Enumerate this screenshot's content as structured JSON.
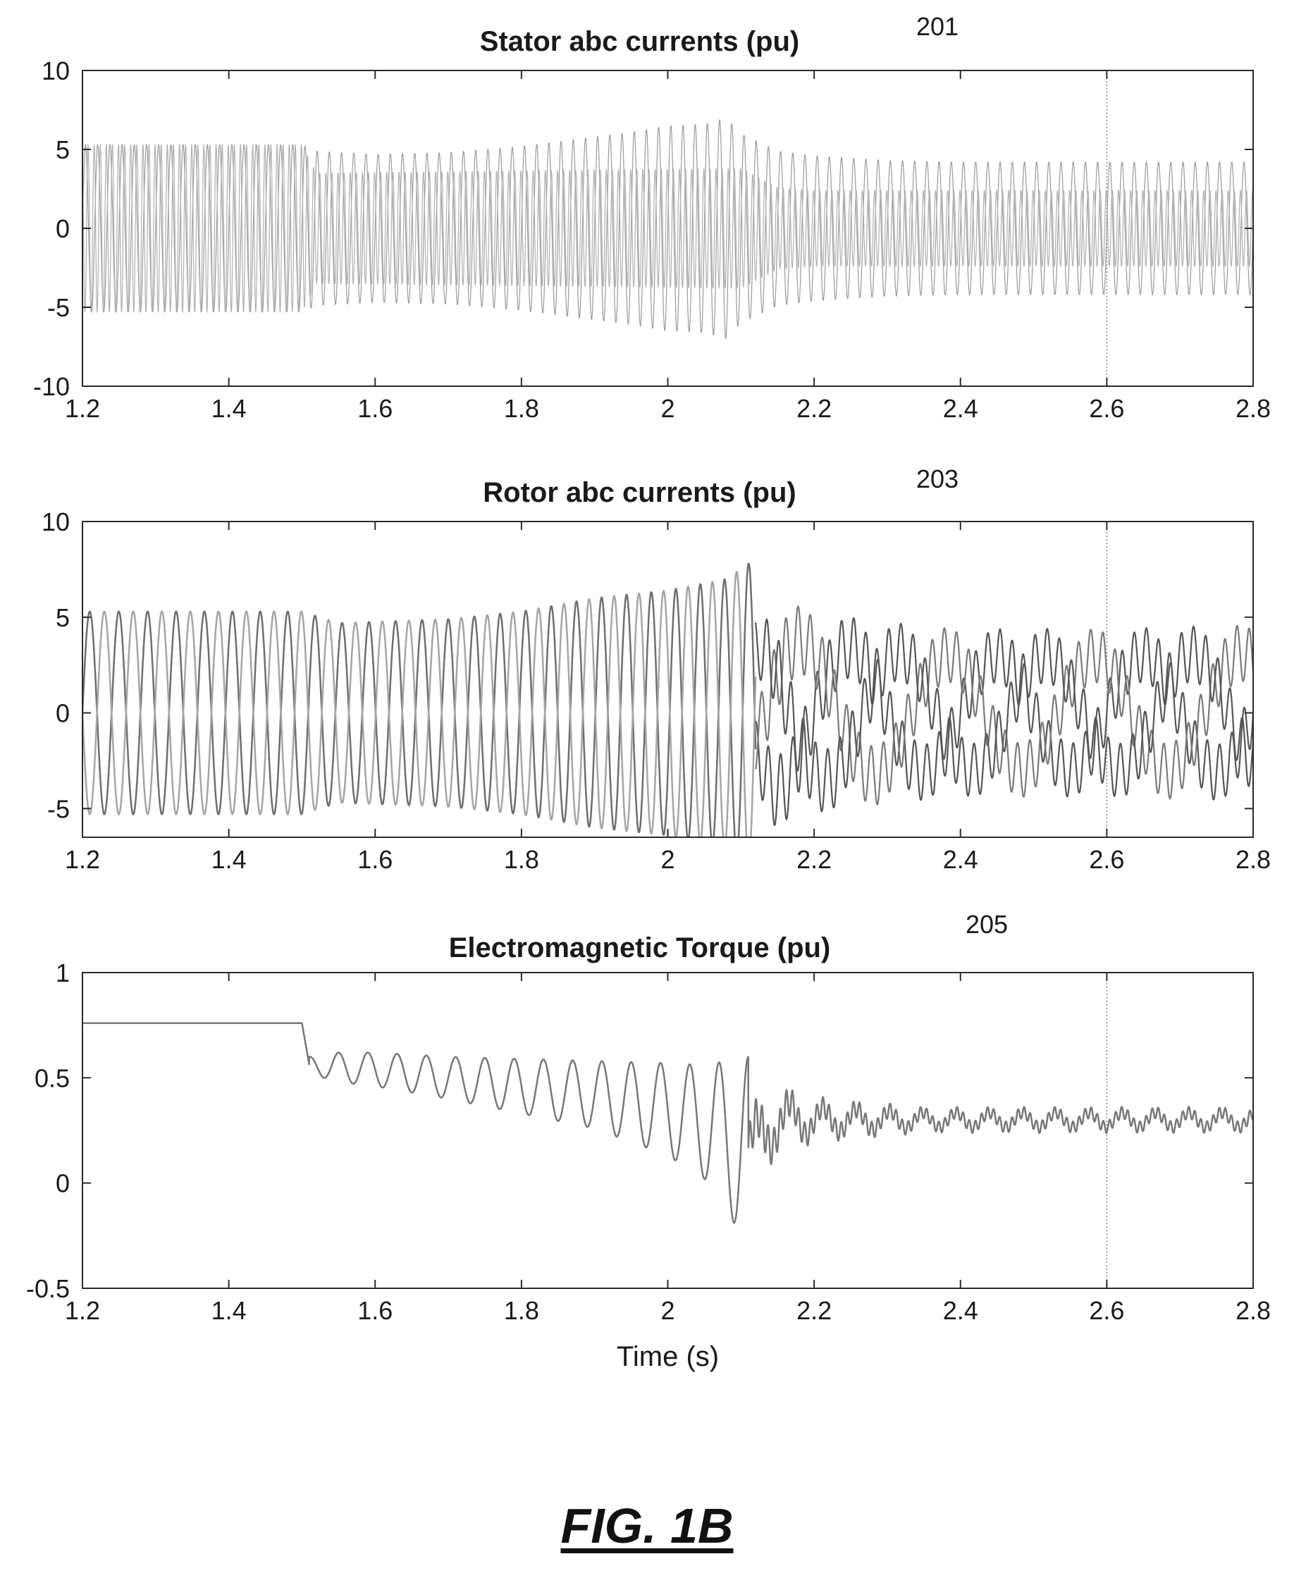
{
  "figure": {
    "label": "FIG. 1B"
  },
  "chart_data": [
    {
      "type": "line",
      "ref": "201",
      "title": "Stator abc currents (pu)",
      "xlabel": "",
      "ylabel": "",
      "xlim": [
        1.2,
        2.8
      ],
      "ylim": [
        -10,
        10
      ],
      "xticks": [
        "1.2",
        "1.4",
        "1.6",
        "1.8",
        "2",
        "2.2",
        "2.4",
        "2.6",
        "2.8"
      ],
      "yticks": [
        "10",
        "5",
        "0",
        "-5",
        "-10"
      ],
      "grid": false,
      "reference_line_x": 2.6,
      "series": [
        {
          "color": "#9a9a9a",
          "envelope_x": [
            1.2,
            1.5,
            1.52,
            1.6,
            1.7,
            1.8,
            1.9,
            1.95,
            2.0,
            2.05,
            2.08,
            2.1,
            2.15,
            2.2,
            2.3,
            2.4,
            2.6,
            2.8
          ],
          "envelope_y": [
            5.3,
            5.3,
            4.9,
            4.7,
            4.8,
            5.2,
            5.8,
            6.1,
            6.5,
            6.6,
            7.0,
            6.0,
            4.9,
            4.6,
            4.3,
            4.2,
            4.2,
            4.2
          ],
          "frequency_hz": 60
        },
        {
          "color": "#b0b0b0",
          "envelope_x": [
            1.2,
            1.5,
            1.52,
            2.1,
            2.15,
            2.2,
            2.4,
            2.6,
            2.8
          ],
          "envelope_y": [
            5.3,
            5.3,
            3.5,
            3.8,
            2.6,
            2.4,
            2.4,
            2.4,
            2.4
          ],
          "frequency_hz": 120
        }
      ]
    },
    {
      "type": "line",
      "ref": "203",
      "title": "Rotor abc currents (pu)",
      "xlabel": "",
      "ylabel": "",
      "xlim": [
        1.2,
        2.8
      ],
      "ylim": [
        -6.5,
        10
      ],
      "xticks": [
        "1.2",
        "1.4",
        "1.6",
        "1.8",
        "2",
        "2.2",
        "2.4",
        "2.6",
        "2.8"
      ],
      "yticks": [
        "10",
        "5",
        "0",
        "-5"
      ],
      "grid": false,
      "reference_line_x": 2.6,
      "series": [
        {
          "color": "#6e6e6e",
          "amplitude_x": [
            1.2,
            1.5,
            1.55,
            1.7,
            1.8,
            1.9,
            2.0,
            2.08,
            2.11
          ],
          "amplitude_y": [
            5.3,
            5.3,
            4.7,
            4.9,
            5.3,
            6.0,
            6.4,
            7.0,
            7.8
          ],
          "frequency_hz": 25
        },
        {
          "color": "#a5a5a5",
          "amplitude_x": [
            1.2,
            1.5,
            1.55,
            1.7,
            1.8,
            1.9,
            2.0,
            2.08,
            2.11
          ],
          "amplitude_y": [
            5.3,
            5.3,
            4.7,
            4.9,
            5.3,
            6.0,
            6.4,
            7.0,
            7.8
          ],
          "frequency_hz": 25
        },
        {
          "color": "#555555",
          "band_x": [
            2.12,
            2.15,
            2.2,
            2.3,
            2.4,
            2.6,
            2.8
          ],
          "band_center": [
            0,
            0,
            0,
            0,
            0,
            0,
            0
          ],
          "band_amplitude": [
            4.5,
            5.5,
            4.8,
            4.3,
            4.0,
            4.0,
            4.2
          ],
          "frequency_hz": 60
        }
      ]
    },
    {
      "type": "line",
      "ref": "205",
      "title": "Electromagnetic Torque (pu)",
      "xlabel": "Time (s)",
      "ylabel": "",
      "xlim": [
        1.2,
        2.8
      ],
      "ylim": [
        -0.5,
        1
      ],
      "xticks": [
        "1.2",
        "1.4",
        "1.6",
        "1.8",
        "2",
        "2.2",
        "2.4",
        "2.6",
        "2.8"
      ],
      "yticks": [
        "1",
        "0.5",
        "0",
        "-0.5"
      ],
      "grid": false,
      "reference_line_x": 2.6,
      "series": [
        {
          "color": "#777777",
          "steady_value": 0.76,
          "step_time": 1.5,
          "osc_x": [
            1.51,
            1.55,
            1.6,
            1.7,
            1.8,
            1.9,
            2.0,
            2.05,
            2.08,
            2.11
          ],
          "osc_mean": [
            0.56,
            0.55,
            0.54,
            0.5,
            0.46,
            0.42,
            0.35,
            0.29,
            0.23,
            0.14
          ],
          "osc_amplitude": [
            0.04,
            0.07,
            0.08,
            0.1,
            0.13,
            0.16,
            0.22,
            0.27,
            0.35,
            0.46
          ],
          "osc_frequency_hz": 25,
          "settled_value": 0.3,
          "settled_amplitude": [
            0.18,
            0.09,
            0.05,
            0.05
          ]
        }
      ]
    }
  ]
}
